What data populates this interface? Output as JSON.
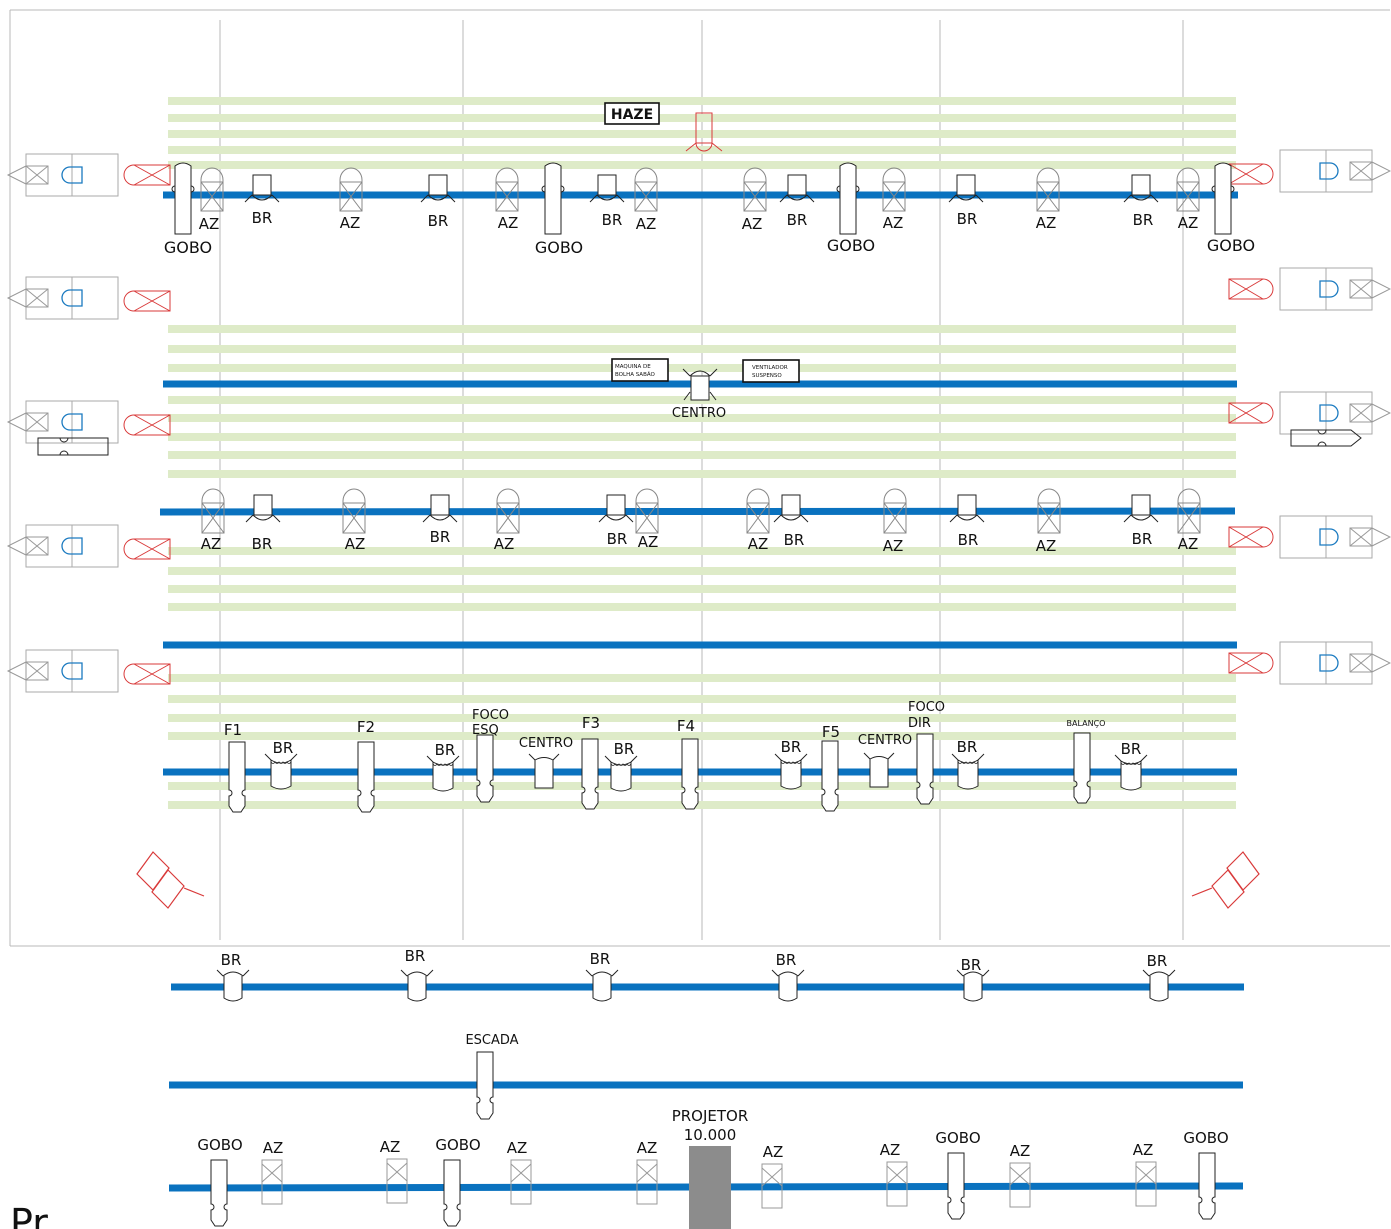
{
  "colors": {
    "pipe": "#0a72bf",
    "stripe": "#deebc8",
    "outline": "#222222",
    "red": "#d93a3a",
    "blue": "#1a7ac0",
    "grey_line": "#b8b8b8",
    "projector": "#8c8c8c"
  },
  "labels": {
    "haze": "HAZE",
    "bubble": [
      "MAQUINA DE",
      "BOLHA SABÃO"
    ],
    "fan": [
      "VENTILADOR",
      "SUSPENSO"
    ],
    "projector": [
      "PROJETOR",
      "10.000"
    ],
    "escada": "ESCADA",
    "balanco": "BALANÇO",
    "bottom_text": "Pr..."
  },
  "fixture_types": {
    "az": "AZ",
    "br": "BR",
    "gobo": "GOBO",
    "centro": "CENTRO"
  },
  "rows": [
    {
      "name": "rig-row-1",
      "fixtures": [
        {
          "t": "GOBO"
        },
        {
          "t": "AZ"
        },
        {
          "t": "BR"
        },
        {
          "t": "AZ"
        },
        {
          "t": "BR"
        },
        {
          "t": "AZ"
        },
        {
          "t": "GOBO"
        },
        {
          "t": "BR"
        },
        {
          "t": "AZ"
        },
        {
          "t": "AZ"
        },
        {
          "t": "BR"
        },
        {
          "t": "GOBO"
        },
        {
          "t": "AZ"
        },
        {
          "t": "BR"
        },
        {
          "t": "AZ"
        },
        {
          "t": "BR"
        },
        {
          "t": "AZ"
        },
        {
          "t": "GOBO"
        }
      ]
    },
    {
      "name": "rig-row-2",
      "fixtures": [
        {
          "t": "CENTRO"
        }
      ]
    },
    {
      "name": "rig-row-3",
      "fixtures": [
        {
          "t": "AZ"
        },
        {
          "t": "BR"
        },
        {
          "t": "AZ"
        },
        {
          "t": "BR"
        },
        {
          "t": "AZ"
        },
        {
          "t": "BR"
        },
        {
          "t": "AZ"
        },
        {
          "t": "AZ"
        },
        {
          "t": "BR"
        },
        {
          "t": "AZ"
        },
        {
          "t": "BR"
        },
        {
          "t": "AZ"
        },
        {
          "t": "BR"
        },
        {
          "t": "AZ"
        }
      ]
    },
    {
      "name": "rig-row-5",
      "fixtures": [
        {
          "t": "F1"
        },
        {
          "t": "BR"
        },
        {
          "t": "F2"
        },
        {
          "t": "BR"
        },
        {
          "t": "FOCO ESQ"
        },
        {
          "t": "CENTRO"
        },
        {
          "t": "F3"
        },
        {
          "t": "BR"
        },
        {
          "t": "F4"
        },
        {
          "t": "BR"
        },
        {
          "t": "F5"
        },
        {
          "t": "CENTRO"
        },
        {
          "t": "FOCO DIR"
        },
        {
          "t": "BR"
        },
        {
          "t": "BALANÇO"
        },
        {
          "t": "BR"
        }
      ]
    },
    {
      "name": "rig-row-6",
      "fixtures": [
        {
          "t": "BR"
        },
        {
          "t": "BR"
        },
        {
          "t": "BR"
        },
        {
          "t": "BR"
        },
        {
          "t": "BR"
        },
        {
          "t": "BR"
        }
      ]
    },
    {
      "name": "rig-row-7",
      "fixtures": [
        {
          "t": "ESCADA"
        }
      ]
    },
    {
      "name": "rig-row-8",
      "fixtures": [
        {
          "t": "GOBO"
        },
        {
          "t": "AZ"
        },
        {
          "t": "AZ"
        },
        {
          "t": "GOBO"
        },
        {
          "t": "AZ"
        },
        {
          "t": "AZ"
        },
        {
          "t": "AZ"
        },
        {
          "t": "AZ"
        },
        {
          "t": "GOBO"
        },
        {
          "t": "AZ"
        },
        {
          "t": "AZ"
        },
        {
          "t": "GOBO"
        }
      ]
    }
  ]
}
